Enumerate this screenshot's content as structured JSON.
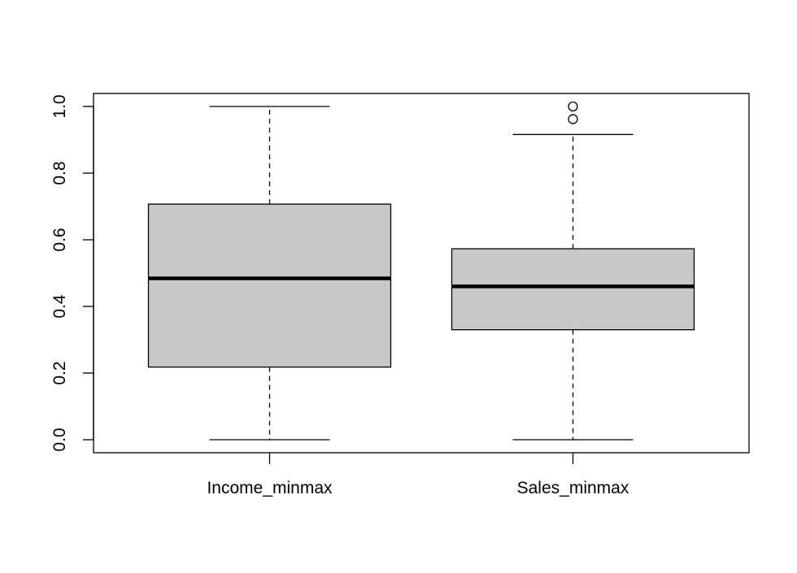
{
  "chart_data": {
    "type": "boxplot",
    "title": "",
    "xlabel": "",
    "ylabel": "",
    "ylim": [
      0.0,
      1.0
    ],
    "yticks": [
      0.0,
      0.2,
      0.4,
      0.6,
      0.8,
      1.0
    ],
    "ytick_labels": [
      "0.0",
      "0.2",
      "0.4",
      "0.6",
      "0.8",
      "1.0"
    ],
    "categories": [
      "Income_minmax",
      "Sales_minmax"
    ],
    "boxes": [
      {
        "label": "Income_minmax",
        "whisker_low": 0.0,
        "q1": 0.218,
        "median": 0.484,
        "q3": 0.707,
        "whisker_high": 1.0,
        "outliers": []
      },
      {
        "label": "Sales_minmax",
        "whisker_low": 0.0,
        "q1": 0.33,
        "median": 0.46,
        "q3": 0.573,
        "whisker_high": 0.916,
        "outliers": [
          0.962,
          1.0
        ]
      }
    ],
    "box_fill": "#c8c8c8",
    "line_color": "#000000",
    "grid": false,
    "legend": "none"
  }
}
